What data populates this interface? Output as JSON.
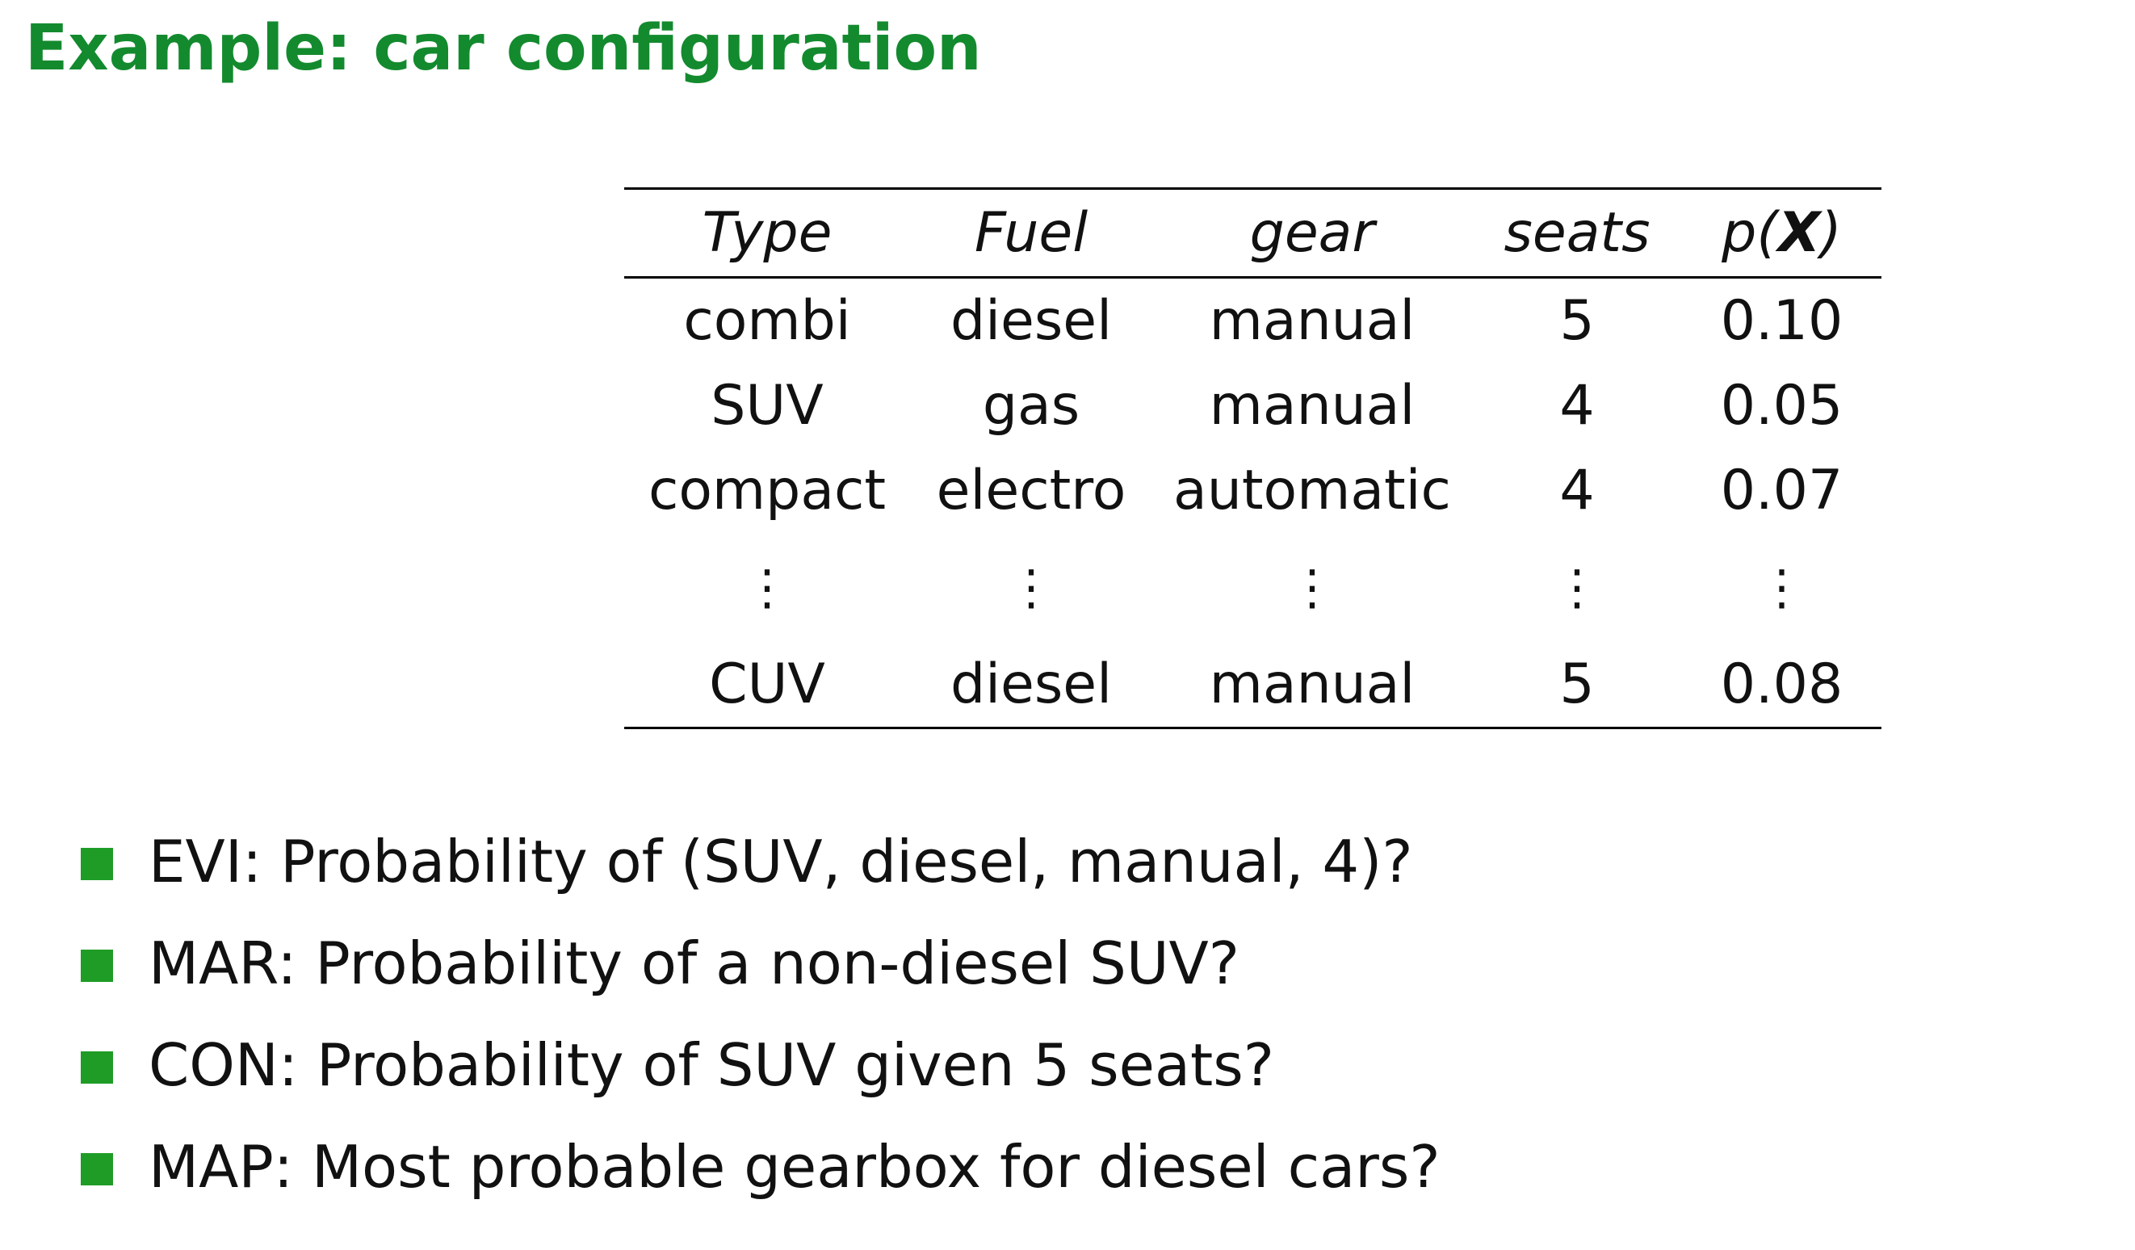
{
  "slide": {
    "title": "Example: car configuration",
    "accent_color": "#138a2e",
    "bullet_color": "#1e9c26"
  },
  "table": {
    "headers": {
      "type": "Type",
      "fuel": "Fuel",
      "gear": "gear",
      "seats": "seats",
      "p_prefix": "p(",
      "p_var": "X",
      "p_suffix": ")"
    },
    "rows": [
      {
        "type": "combi",
        "fuel": "diesel",
        "gear": "manual",
        "seats": "5",
        "p": "0.10"
      },
      {
        "type": "SUV",
        "fuel": "gas",
        "gear": "manual",
        "seats": "4",
        "p": "0.05"
      },
      {
        "type": "compact",
        "fuel": "electro",
        "gear": "automatic",
        "seats": "4",
        "p": "0.07"
      }
    ],
    "ellipsis": "⋮",
    "last_row": {
      "type": "CUV",
      "fuel": "diesel",
      "gear": "manual",
      "seats": "5",
      "p": "0.08"
    }
  },
  "bullets": [
    "EVI: Probability of (SUV, diesel, manual, 4)?",
    "MAR: Probability of a non-diesel SUV?",
    "CON: Probability of SUV given 5 seats?",
    "MAP: Most probable gearbox for diesel cars?"
  ]
}
